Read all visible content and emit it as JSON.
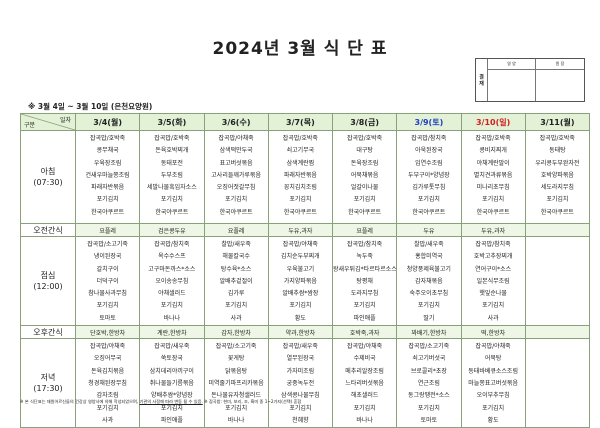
{
  "title": "2024년 3월 식 단 표",
  "approval": {
    "label": "결 재",
    "cols": [
      "영 양",
      "원 장"
    ]
  },
  "subtitle": "※ 3월 4일 ~ 3월 10일 (은천요양원)",
  "corner": {
    "top": "일자",
    "bottom": "구분"
  },
  "days": [
    {
      "label": "3/4(월)",
      "type": "weekday"
    },
    {
      "label": "3/5(화)",
      "type": "weekday"
    },
    {
      "label": "3/6(수)",
      "type": "weekday"
    },
    {
      "label": "3/7(목)",
      "type": "weekday"
    },
    {
      "label": "3/8(금)",
      "type": "weekday"
    },
    {
      "label": "3/9(토)",
      "type": "sat"
    },
    {
      "label": "3/10(일)",
      "type": "sun"
    },
    {
      "label": "3/11(월)",
      "type": "weekday"
    }
  ],
  "meals": [
    {
      "name": "아침",
      "time": "(07:30)",
      "kind": "meal",
      "cells": [
        [
          "잡곡밥/호박죽",
          "콩무채국",
          "우육장조림",
          "건새우마늘쫑조림",
          "파래자반볶음",
          "포기김치",
          "한국야쿠르트"
        ],
        [
          "잡곡밥/호박죽",
          "돈육호박찌개",
          "동태포전",
          "두부조림",
          "세발나물흑임자소스",
          "포기김치",
          "한국야쿠르트"
        ],
        [
          "잡곡밥/야채죽",
          "삼색떡만두국",
          "표고버섯볶음",
          "고사리들깨가루볶음",
          "오징어젓갈무침",
          "포기김치",
          "한국야쿠르트"
        ],
        [
          "잡곡밥/호박죽",
          "쇠고기무국",
          "삼색계란찜",
          "파래자반볶음",
          "꽁치김치조림",
          "포기김치",
          "한국야쿠르트"
        ],
        [
          "잡곡밥/호박죽",
          "대구탕",
          "돈육장조림",
          "어묵채볶음",
          "얼갈이나물",
          "포기김치",
          "한국야쿠르트"
        ],
        [
          "잡곡밥/참치죽",
          "아욱된장국",
          "임연수조림",
          "두부구이*양념장",
          "김가루톳무침",
          "포기김치",
          "한국야쿠르트"
        ],
        [
          "잡곡밥/호박죽",
          "콩비지찌개",
          "야채계란말이",
          "멸치견과류볶음",
          "미나리초무침",
          "포기김치",
          "한국야쿠르트"
        ],
        [
          "잡곡밥/호박죽",
          "동태탕",
          "우리콩두부완자전",
          "호박양파볶음",
          "세도라지무침",
          "포기김치",
          "한국야쿠르트"
        ]
      ]
    },
    {
      "name": "오전간식",
      "time": "",
      "kind": "snack",
      "cells": [
        "요플레",
        "검은콩두유",
        "요플레",
        "두유,과자",
        "요플레",
        "두유",
        "두유,과자",
        ""
      ]
    },
    {
      "name": "점심",
      "time": "(12:00)",
      "kind": "meal",
      "cells": [
        [
          "잡곡밥/소고기죽",
          "냉이된장국",
          "갈치구이",
          "더덕구이",
          "참나물사과무침",
          "포기김치",
          "토마토"
        ],
        [
          "잡곡밥/참치죽",
          "옥수수스프",
          "고구마돈까스*소스",
          "오이송송무침",
          "야채샐러드",
          "포기김치",
          "바나나"
        ],
        [
          "찰밥/새우죽",
          "해물칼국수",
          "탕수육*소스",
          "알배추겉절이",
          "김가루",
          "포기김치",
          "사과"
        ],
        [
          "잡곡밥/야채죽",
          "김치순두부찌개",
          "우육불고기",
          "가지양파볶음",
          "알배추쌈*쌈장",
          "포기김치",
          "황도"
        ],
        [
          "잡곡밥/참치죽",
          "녹두죽",
          "왕새우튀김*타르타르소스",
          "탕평채",
          "도라지무침",
          "포기김치",
          "파인애플"
        ],
        [
          "찰밥/새우죽",
          "홍합미역국",
          "청양풍제육불고기",
          "감자채볶음",
          "숙주오이초무침",
          "포기김치",
          "딸기"
        ],
        [
          "잡곡밥/참치죽",
          "호박고추장찌개",
          "연어구이*소스",
          "일본식무조림",
          "햇잎순나물",
          "포기김치",
          "사과"
        ],
        [
          "",
          "",
          "",
          "",
          "",
          "",
          ""
        ]
      ]
    },
    {
      "name": "오후간식",
      "time": "",
      "kind": "snack",
      "cells": [
        "단호박,한방차",
        "계란,한방차",
        "감자,한방차",
        "약과,한방차",
        "호박죽,과자",
        "꽈배기,한방차",
        "떡,한방차",
        ""
      ]
    },
    {
      "name": "저녁",
      "time": "(17:30)",
      "kind": "meal",
      "cells": [
        [
          "잡곡밥/야채죽",
          "오징어무국",
          "돈육김치볶음",
          "청경채된장무침",
          "감자조림",
          "포기김치",
          "사과"
        ],
        [
          "잡곡밥/새우죽",
          "쑥토장국",
          "삼치데리야끼구이",
          "취나물들기름볶음",
          "양배추쌈*양념장",
          "포기김치",
          "파인애플"
        ],
        [
          "잡곡밥/소고기죽",
          "꽃게탕",
          "닭볶음탕",
          "미역줄기파프리카볶음",
          "돈나물유자청샐러드",
          "포기김치",
          "바나나"
        ],
        [
          "잡곡밥/새우죽",
          "열무된장국",
          "가자미조림",
          "궁중녹두전",
          "삼색콩나물무침",
          "포기김치",
          "천혜향"
        ],
        [
          "잡곡밥/야채죽",
          "수제비국",
          "메추리알장조림",
          "느타리버섯볶음",
          "해초샐러드",
          "포기김치",
          "바나나"
        ],
        [
          "잡곡밥/소고기죽",
          "쇠고기버섯국",
          "브로콜리*초장",
          "연근조림",
          "동그랑땡전*소스",
          "포기김치",
          "토마토"
        ],
        [
          "잡곡밥/야채죽",
          "어묵탕",
          "동태바베큐소스조림",
          "마늘쫑표고버섯볶음",
          "오이부추무침",
          "포기김치",
          "황도"
        ],
        [
          "",
          "",
          "",
          "",
          "",
          "",
          ""
        ]
      ]
    }
  ],
  "footer": {
    "part1": "※ 본 식단표는 재원어르신들의 건강상 영양사에 의해 작성되었으며, ",
    "part2": "기관의 사정에 따라 변동 될 수 있음.",
    "part3": " ※ 잡곡밥: 현미, 보리, 조, 흑미 중 1~2가지(선택) 혼합"
  }
}
